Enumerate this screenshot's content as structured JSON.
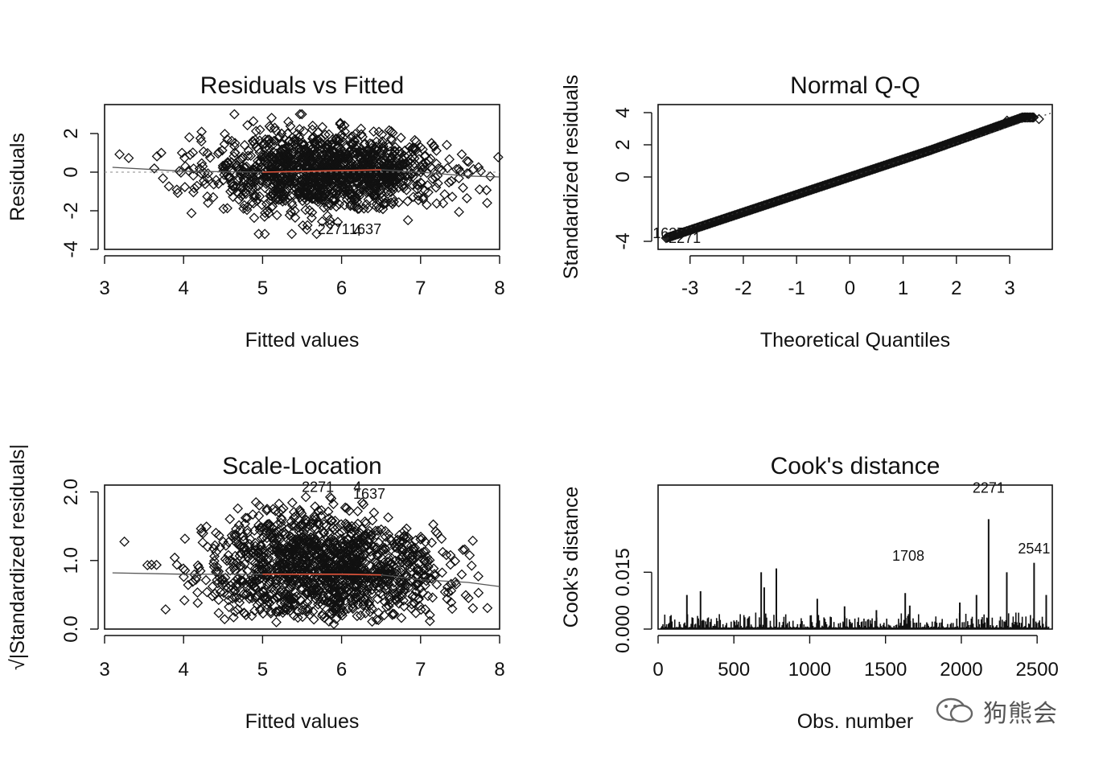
{
  "watermark": {
    "text": "狗熊会",
    "icon": "wechat-icon"
  },
  "chart_data": [
    {
      "id": "resfit",
      "type": "scatter",
      "title": "Residuals vs Fitted",
      "xlabel": "Fitted values",
      "ylabel": "Residuals",
      "xlim": [
        3,
        8
      ],
      "ylim": [
        -4,
        3.5
      ],
      "xticks": [
        "3",
        "4",
        "5",
        "6",
        "7",
        "8"
      ],
      "xtick_values": [
        3,
        4,
        5,
        6,
        7,
        8
      ],
      "yticks": [
        "-4",
        "-2",
        "0",
        "2"
      ],
      "ytick_values": [
        -4,
        -2,
        0,
        2
      ],
      "ref_line": 0,
      "smooth_line": [
        [
          3.1,
          0.25
        ],
        [
          4.0,
          0.05
        ],
        [
          5.0,
          0.0
        ],
        [
          6.0,
          0.08
        ],
        [
          6.5,
          0.12
        ],
        [
          7.0,
          0.0
        ],
        [
          7.6,
          -0.2
        ],
        [
          8.0,
          -0.25
        ]
      ],
      "outlier_labels": [
        {
          "text": "2271",
          "x": 5.9,
          "y": -3.2
        },
        {
          "text": "1637",
          "x": 6.3,
          "y": -3.2
        },
        {
          "text": "4",
          "x": 6.2,
          "y": -3.3
        }
      ],
      "point_density": "dense cloud, fitted 3.1 to 8.0, residuals mostly -2 to 2"
    },
    {
      "id": "qq",
      "type": "scatter",
      "title": "Normal Q-Q",
      "xlabel": "Theoretical Quantiles",
      "ylabel": "Standardized residuals",
      "xlim": [
        -3.6,
        3.8
      ],
      "ylim": [
        -4.5,
        4.5
      ],
      "xticks": [
        "-3",
        "-2",
        "-1",
        "0",
        "1",
        "2",
        "3"
      ],
      "xtick_values": [
        -3,
        -2,
        -1,
        0,
        1,
        2,
        3
      ],
      "yticks": [
        "-4",
        "0",
        "2",
        "4"
      ],
      "ytick_values": [
        -4,
        0,
        2,
        4
      ],
      "ref_line": {
        "slope": 1.05,
        "intercept": 0
      },
      "outlier_labels": [
        {
          "text": "1637",
          "x": -3.4,
          "y": -3.8
        },
        {
          "text": "2271",
          "x": -3.1,
          "y": -4.1
        }
      ]
    },
    {
      "id": "scaleloc",
      "type": "scatter",
      "title": "Scale-Location",
      "xlabel": "Fitted values",
      "ylabel": "√|Standardized residuals|",
      "xlim": [
        3,
        8
      ],
      "ylim": [
        0,
        2.1
      ],
      "xticks": [
        "3",
        "4",
        "5",
        "6",
        "7",
        "8"
      ],
      "xtick_values": [
        3,
        4,
        5,
        6,
        7,
        8
      ],
      "yticks": [
        "0.0",
        "1.0",
        "2.0"
      ],
      "ytick_values": [
        0,
        1,
        2
      ],
      "smooth_line": [
        [
          3.1,
          0.82
        ],
        [
          4.0,
          0.8
        ],
        [
          5.0,
          0.8
        ],
        [
          6.0,
          0.8
        ],
        [
          6.5,
          0.79
        ],
        [
          7.0,
          0.72
        ],
        [
          7.6,
          0.68
        ],
        [
          8.0,
          0.62
        ]
      ],
      "outlier_labels": [
        {
          "text": "2271",
          "x": 5.7,
          "y": 2.0
        },
        {
          "text": "1637",
          "x": 6.35,
          "y": 1.9
        },
        {
          "text": "4",
          "x": 6.2,
          "y": 2.0
        }
      ]
    },
    {
      "id": "cooks",
      "type": "bar",
      "title": "Cook's distance",
      "xlabel": "Obs. number",
      "ylabel": "Cook's distance",
      "xlim": [
        0,
        2600
      ],
      "ylim": [
        0,
        0.038
      ],
      "xticks": [
        "0",
        "500",
        "1000",
        "1500",
        "2000",
        "2500"
      ],
      "xtick_values": [
        0,
        500,
        1000,
        1500,
        2000,
        2500
      ],
      "yticks": [
        "0.000",
        "0.015"
      ],
      "ytick_values": [
        0,
        0.015
      ],
      "spikes": [
        {
          "x": 190,
          "y": 0.009
        },
        {
          "x": 280,
          "y": 0.01
        },
        {
          "x": 680,
          "y": 0.015
        },
        {
          "x": 700,
          "y": 0.011
        },
        {
          "x": 780,
          "y": 0.016
        },
        {
          "x": 1050,
          "y": 0.008
        },
        {
          "x": 1230,
          "y": 0.006
        },
        {
          "x": 1440,
          "y": 0.005
        },
        {
          "x": 1630,
          "y": 0.0095
        },
        {
          "x": 1660,
          "y": 0.0062
        },
        {
          "x": 1990,
          "y": 0.007
        },
        {
          "x": 2100,
          "y": 0.009
        },
        {
          "x": 2180,
          "y": 0.029
        },
        {
          "x": 2300,
          "y": 0.015
        },
        {
          "x": 2480,
          "y": 0.0175
        },
        {
          "x": 2560,
          "y": 0.009
        }
      ],
      "outlier_labels": [
        {
          "text": "1708",
          "x": 1650,
          "y": 0.018
        },
        {
          "text": "2271",
          "x": 2180,
          "y": 0.036
        },
        {
          "text": "2541",
          "x": 2480,
          "y": 0.02
        }
      ]
    }
  ]
}
